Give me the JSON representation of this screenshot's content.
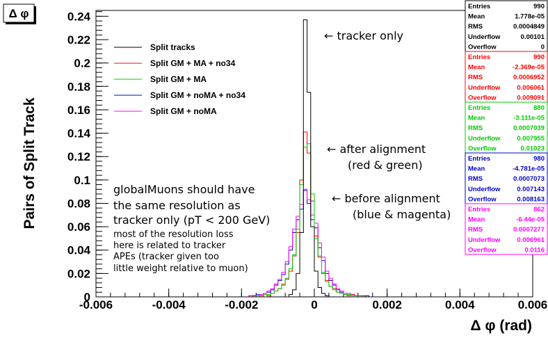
{
  "chart_data": {
    "type": "histogram",
    "title": "Δ φ",
    "xlabel": "Δ φ (rad)",
    "ylabel": "Pairs of Split Track",
    "xlim": [
      -0.006,
      0.006
    ],
    "ylim": [
      0,
      0.245
    ],
    "x_ticks": [
      "-0.006",
      "-0.004",
      "-0.002",
      "0",
      "0.002",
      "0.004",
      "0.006"
    ],
    "x_tick_values": [
      -0.006,
      -0.004,
      -0.002,
      0,
      0.002,
      0.004,
      0.006
    ],
    "y_ticks": [
      "0",
      "0.02",
      "0.04",
      "0.06",
      "0.08",
      "0.1",
      "0.12",
      "0.14",
      "0.16",
      "0.18",
      "0.2",
      "0.22",
      "0.24"
    ],
    "y_tick_values": [
      0,
      0.02,
      0.04,
      0.06,
      0.08,
      0.1,
      0.12,
      0.14,
      0.16,
      0.18,
      0.2,
      0.22,
      0.24
    ],
    "bin_width": 0.0001,
    "bin_start": -0.0025,
    "series": [
      {
        "name": "Split tracks",
        "color": "#000000",
        "values": [
          0,
          0,
          0,
          0,
          0,
          0,
          0,
          0,
          0,
          0,
          0,
          0,
          0,
          0,
          0,
          0,
          0,
          0,
          0.002,
          0.006,
          0.02,
          0.055,
          0.237,
          0.175,
          0.06,
          0.022,
          0.008,
          0.003,
          0.001,
          0,
          0,
          0,
          0,
          0,
          0,
          0,
          0,
          0,
          0,
          0,
          0,
          0,
          0,
          0,
          0,
          0,
          0,
          0,
          0,
          0
        ]
      },
      {
        "name": "Split GM + MA + no34",
        "color": "#ff0000",
        "values": [
          0,
          0,
          0,
          0,
          0,
          0,
          0,
          0,
          0.001,
          0,
          0.001,
          0.002,
          0.001,
          0.003,
          0.005,
          0.007,
          0.01,
          0.015,
          0.022,
          0.035,
          0.055,
          0.1,
          0.141,
          0.123,
          0.082,
          0.052,
          0.034,
          0.02,
          0.014,
          0.009,
          0.007,
          0.004,
          0.003,
          0.002,
          0.001,
          0.002,
          0.001,
          0,
          0.001,
          0,
          0,
          0,
          0,
          0,
          0,
          0,
          0,
          0,
          0,
          0
        ]
      },
      {
        "name": "Split GM + MA",
        "color": "#00cc00",
        "values": [
          0,
          0,
          0,
          0,
          0,
          0,
          0,
          0,
          0,
          0.001,
          0,
          0.002,
          0.002,
          0.003,
          0.005,
          0.007,
          0.011,
          0.016,
          0.024,
          0.036,
          0.058,
          0.096,
          0.128,
          0.131,
          0.088,
          0.05,
          0.035,
          0.021,
          0.013,
          0.009,
          0.006,
          0.004,
          0.003,
          0.002,
          0.002,
          0.001,
          0.001,
          0.001,
          0,
          0,
          0,
          0,
          0,
          0,
          0,
          0,
          0,
          0,
          0,
          0
        ]
      },
      {
        "name": "Split GM + noMA + no34",
        "color": "#0000cc",
        "values": [
          0,
          0,
          0,
          0,
          0,
          0,
          0,
          0.001,
          0.001,
          0.002,
          0.002,
          0.003,
          0.004,
          0.006,
          0.01,
          0.014,
          0.019,
          0.028,
          0.04,
          0.055,
          0.066,
          0.075,
          0.091,
          0.08,
          0.066,
          0.059,
          0.042,
          0.031,
          0.02,
          0.014,
          0.01,
          0.006,
          0.004,
          0.003,
          0.002,
          0.002,
          0.001,
          0.001,
          0,
          0.001,
          0,
          0,
          0,
          0,
          0,
          0,
          0,
          0,
          0,
          0
        ]
      },
      {
        "name": "Split GM + noMA",
        "color": "#ff00ff",
        "values": [
          0,
          0,
          0,
          0,
          0,
          0,
          0,
          0.001,
          0.001,
          0.001,
          0.002,
          0.003,
          0.005,
          0.007,
          0.011,
          0.015,
          0.021,
          0.03,
          0.043,
          0.058,
          0.069,
          0.079,
          0.092,
          0.083,
          0.07,
          0.063,
          0.046,
          0.034,
          0.022,
          0.016,
          0.011,
          0.007,
          0.005,
          0.003,
          0.003,
          0.002,
          0.001,
          0.001,
          0.001,
          0,
          0,
          0,
          0,
          0,
          0,
          0,
          0,
          0,
          0,
          0
        ]
      }
    ],
    "stat_boxes": [
      {
        "color": "#000000",
        "rows": [
          [
            "Entries",
            "990"
          ],
          [
            "Mean",
            "1.778e-05"
          ],
          [
            "RMS",
            "0.0004849"
          ],
          [
            "Underflow",
            "0.00101"
          ],
          [
            "Overflow",
            "0"
          ]
        ]
      },
      {
        "color": "#ff0000",
        "rows": [
          [
            "Entries",
            "990"
          ],
          [
            "Mean",
            "-2.369e-05"
          ],
          [
            "RMS",
            "0.0006952"
          ],
          [
            "Underflow",
            "0.006061"
          ],
          [
            "Overflow",
            "0.009091"
          ]
        ]
      },
      {
        "color": "#00cc00",
        "rows": [
          [
            "Entries",
            "880"
          ],
          [
            "Mean",
            "-3.111e-05"
          ],
          [
            "RMS",
            "0.0007039"
          ],
          [
            "Underflow",
            "0.007955"
          ],
          [
            "Overflow",
            "0.01023"
          ]
        ]
      },
      {
        "color": "#0000cc",
        "rows": [
          [
            "Entries",
            "980"
          ],
          [
            "Mean",
            "-4.781e-05"
          ],
          [
            "RMS",
            "0.0007073"
          ],
          [
            "Underflow",
            "0.007143"
          ],
          [
            "Overflow",
            "0.008163"
          ]
        ]
      },
      {
        "color": "#ff00ff",
        "rows": [
          [
            "Entries",
            "862"
          ],
          [
            "Mean",
            "-6.44e-05"
          ],
          [
            "RMS",
            "0.0007277"
          ],
          [
            "Underflow",
            "0.006961"
          ],
          [
            "Overflow",
            "0.0116"
          ]
        ]
      }
    ],
    "annotations": {
      "tracker_only": "← tracker only",
      "after_1": "← after alignment",
      "after_2": "(red & green)",
      "before_1": "← before alignment",
      "before_2": "(blue & magenta)",
      "big": [
        "globalMuons should have",
        "the same resolution as",
        "tracker only (pT < 200 GeV)"
      ],
      "small": [
        "most of the resolution loss",
        "here is related to tracker",
        "APEs (tracker given too",
        "little weight relative to muon)"
      ]
    }
  }
}
